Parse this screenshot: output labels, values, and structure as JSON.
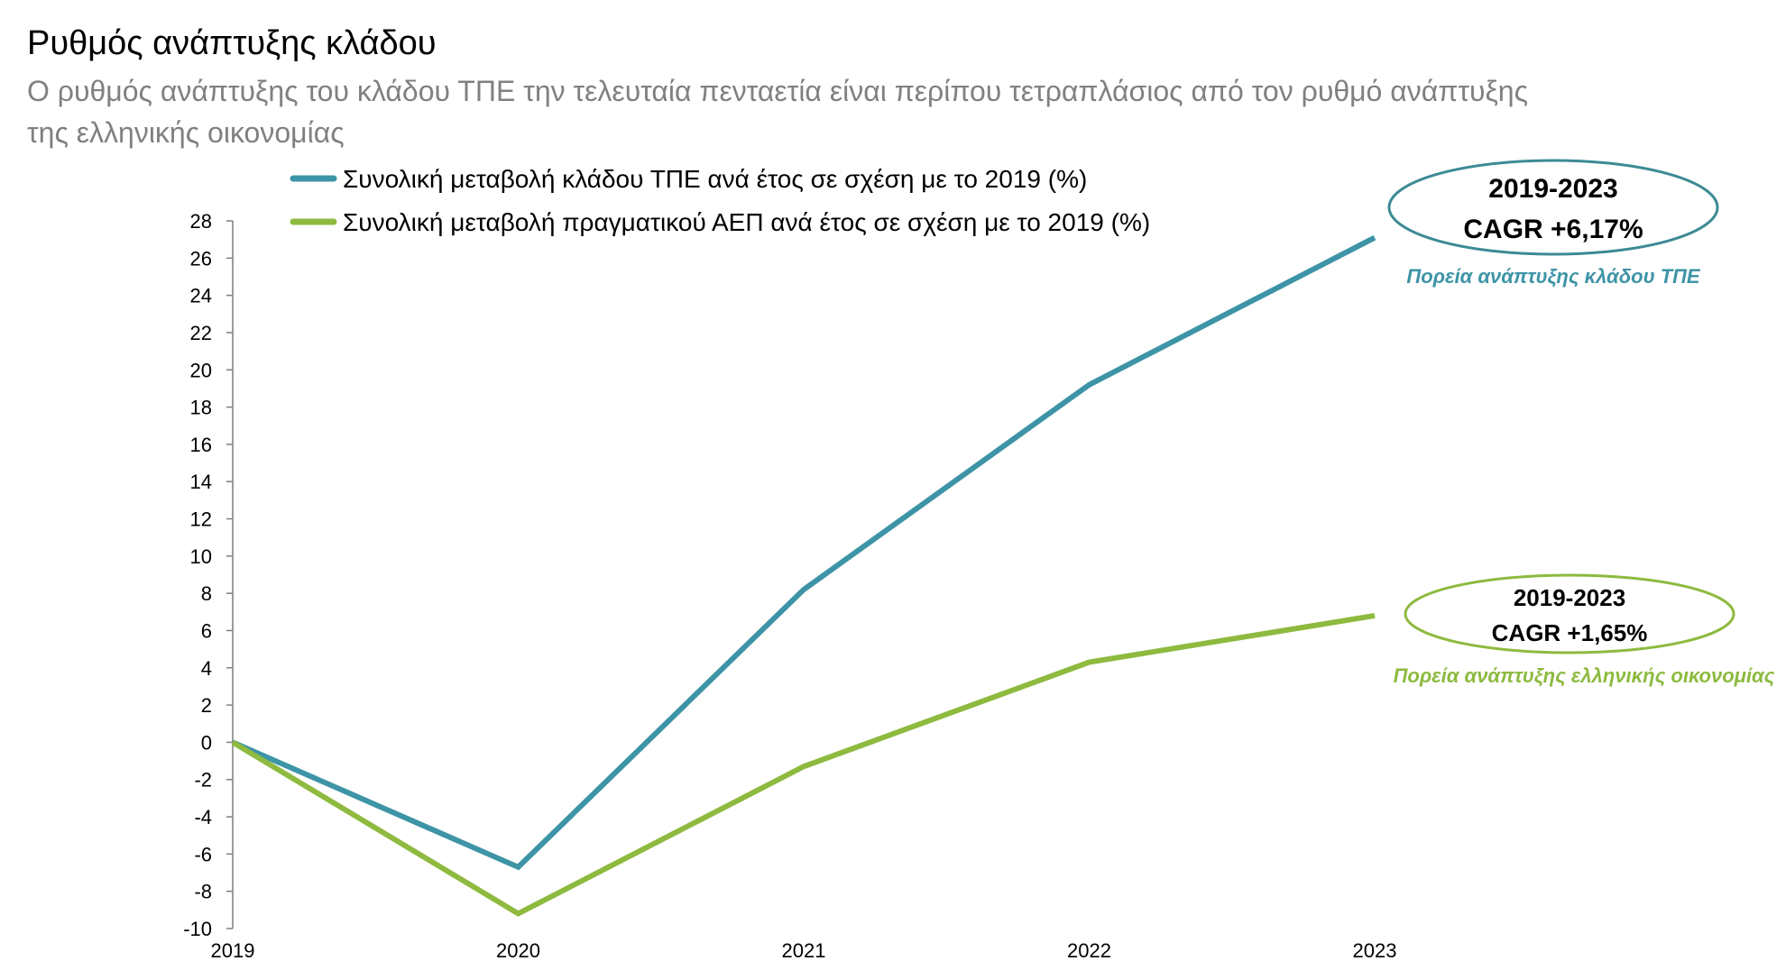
{
  "header": {
    "title": "Ρυθμός ανάπτυξης κλάδου",
    "subtitle_line1": "Ο ρυθμός ανάπτυξης του κλάδου ΤΠΕ την τελευταία πενταετία είναι περίπου τετραπλάσιος από τον ρυθμό ανάπτυξης",
    "subtitle_line2": "της ελληνικής οικονομίας"
  },
  "colors": {
    "ict": "#3d94a6",
    "gdp": "#8dba3f",
    "axis": "#7f7f7f"
  },
  "chart_data": {
    "type": "line",
    "title": "Ρυθμός ανάπτυξης κλάδου",
    "x": [
      "2019",
      "2020",
      "2021",
      "2022",
      "2023"
    ],
    "ylim": [
      -10,
      28
    ],
    "yticks": [
      "28",
      "26",
      "24",
      "22",
      "20",
      "18",
      "16",
      "14",
      "12",
      "10",
      "8",
      "6",
      "4",
      "2",
      "0",
      "-2",
      "-4",
      "-6",
      "-8",
      "-10"
    ],
    "grid": false,
    "legend_position": "top",
    "series": [
      {
        "name": "Συνολική μεταβολή κλάδου ΤΠΕ ανά έτος σε σχέση με το 2019 (%)",
        "values": [
          0,
          -6.7,
          8.2,
          19.2,
          27.1
        ]
      },
      {
        "name": "Συνολική μεταβολή πραγματικού ΑΕΠ ανά έτος σε σχέση με το 2019 (%)",
        "values": [
          0,
          -9.2,
          -1.3,
          4.3,
          6.8
        ]
      }
    ],
    "annotations": [
      {
        "period": "2019-2023",
        "cagr": "CAGR +6,17%",
        "caption": "Πορεία ανάπτυξης κλάδου ΤΠΕ"
      },
      {
        "period": "2019-2023",
        "cagr": "CAGR +1,65%",
        "caption": "Πορεία ανάπτυξης ελληνικής οικονομίας"
      }
    ]
  }
}
